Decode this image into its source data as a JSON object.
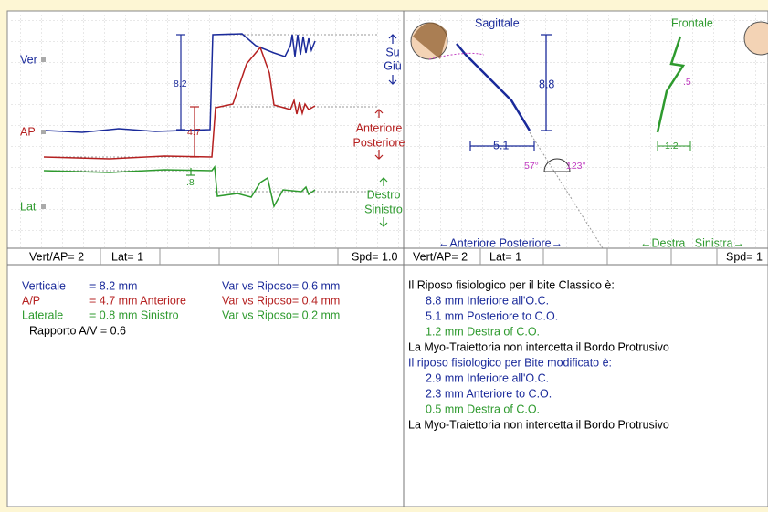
{
  "left_trace": {
    "channels": [
      "Ver",
      "AP",
      "Lat"
    ],
    "measures": [
      "8.2",
      "4.7",
      ".8"
    ],
    "directions": [
      [
        "Su",
        "Giù"
      ],
      [
        "Anteriore",
        "Posteriore"
      ],
      [
        "Destro",
        "Sinistro"
      ]
    ]
  },
  "right_trace": {
    "sagittal_title": "Sagittale",
    "frontal_title": "Frontale",
    "vertical": "8.8",
    "horizontal": "5.1",
    "angles": [
      "57°",
      "123°"
    ],
    "frontal_horizontal": "1.2",
    "frontal_small": ".5",
    "sagittal_axis": "←Anteriore Posteriore→",
    "frontal_axis": "←Destra   Sinistra→"
  },
  "status_left": [
    "Vert/AP= 2",
    "Lat= 1",
    "Spd= 1.0"
  ],
  "status_right": [
    "Vert/AP= 2",
    "Lat= 1",
    "Spd= 1"
  ],
  "summary": {
    "rows": [
      [
        "Verticale",
        "= 8.2 mm",
        "Var vs Riposo= 0.6 mm"
      ],
      [
        "A/P",
        "= 4.7 mm Anteriore",
        "Var vs Riposo= 0.4 mm"
      ],
      [
        "Laterale",
        "= 0.8 mm Sinistro",
        "Var vs Riposo= 0.2 mm"
      ]
    ],
    "ratio": "Rapporto A/V = 0.6"
  },
  "report": {
    "lines": [
      "Il Riposo fisiologico per il bite Classico è:",
      "8.8 mm Inferiore all'O.C.",
      "5.1 mm Posteriore to C.O.",
      "1.2 mm Destra of C.O.",
      "La Myo-Traiettoria non intercetta il Bordo Protrusivo",
      "Il riposo fisiologico per Bite modificato è:",
      "2.9 mm Inferiore all'O.C.",
      "2.3 mm Anteriore to C.O.",
      "0.5 mm Destra of C.O.",
      "La Myo-Traiettoria non intercetta il Bordo Protrusivo"
    ]
  }
}
